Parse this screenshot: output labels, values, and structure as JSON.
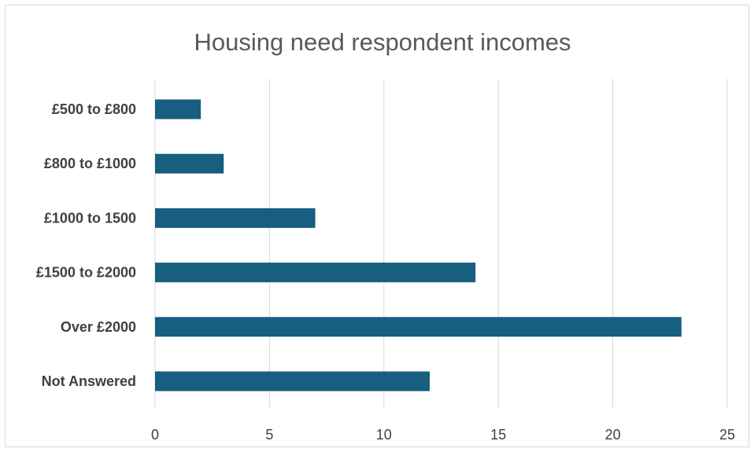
{
  "chart_data": {
    "type": "bar",
    "orientation": "horizontal",
    "title": "Housing need respondent incomes",
    "categories": [
      "£500 to £800",
      "£800 to £1000",
      "£1000 to 1500",
      "£1500 to £2000",
      "Over £2000",
      "Not Answered"
    ],
    "values": [
      2,
      3,
      7,
      14,
      23,
      12
    ],
    "xlim": [
      0,
      25
    ],
    "xticks": [
      0,
      5,
      10,
      15,
      20,
      25
    ],
    "grid": true,
    "legend": "none",
    "bar_color": "#175e80"
  }
}
